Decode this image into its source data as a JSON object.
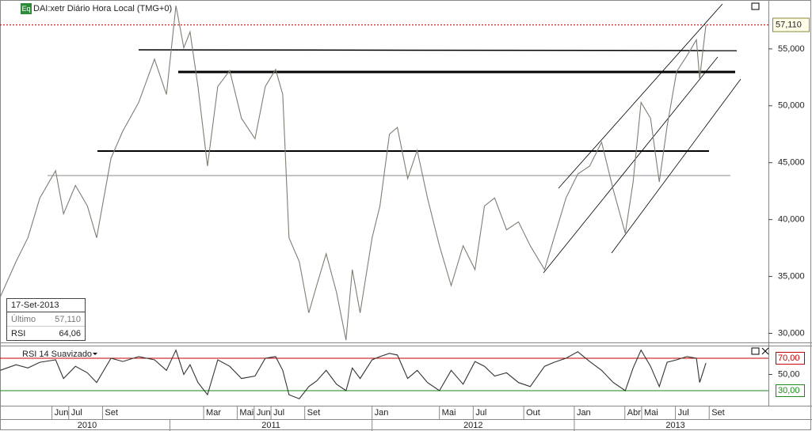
{
  "chart_data": [
    {
      "type": "line",
      "title": "DAI:xetr Diário Hora Local (TMG+0)",
      "badge": "Eq",
      "color": "#7b8073",
      "x": [
        2010.161,
        2010.239,
        2010.298,
        2010.357,
        2010.435,
        2010.474,
        2010.533,
        2010.592,
        2010.638,
        2010.709,
        2010.768,
        2010.846,
        2010.924,
        2010.983,
        2011.03,
        2011.069,
        2011.1,
        2011.139,
        2011.186,
        2011.237,
        2011.296,
        2011.354,
        2011.421,
        2011.472,
        2011.523,
        2011.558,
        2011.589,
        2011.64,
        2011.687,
        2011.726,
        2011.773,
        2011.824,
        2011.871,
        2011.902,
        2011.941,
        2012.0,
        2012.039,
        2012.086,
        2012.125,
        2012.176,
        2012.223,
        2012.274,
        2012.333,
        2012.391,
        2012.45,
        2012.509,
        2012.556,
        2012.606,
        2012.665,
        2012.724,
        2012.782,
        2012.853,
        2012.9,
        2012.959,
        2013.017,
        2013.076,
        2013.135,
        2013.193,
        2013.252,
        2013.291,
        2013.33,
        2013.377,
        2013.42,
        2013.459,
        2013.506,
        2013.557,
        2013.604,
        2013.62,
        2013.651
      ],
      "values": [
        33.2,
        36.3,
        38.4,
        41.9,
        44.3,
        40.5,
        43.0,
        41.2,
        38.4,
        45.4,
        47.8,
        50.3,
        54.1,
        51.0,
        58.8,
        55.1,
        56.5,
        51.7,
        44.7,
        51.7,
        53.1,
        48.9,
        47.1,
        51.7,
        53.2,
        51.0,
        38.4,
        36.3,
        31.8,
        34.2,
        37.0,
        33.6,
        29.4,
        35.6,
        31.8,
        38.4,
        41.2,
        47.5,
        48.1,
        43.6,
        46.1,
        41.9,
        37.7,
        34.2,
        37.7,
        35.6,
        41.2,
        41.9,
        39.1,
        39.8,
        37.7,
        35.6,
        38.4,
        41.9,
        44.0,
        44.7,
        46.8,
        42.6,
        38.8,
        43.3,
        50.3,
        48.9,
        43.3,
        48.2,
        53.0,
        54.4,
        55.8,
        52.4,
        57.11
      ],
      "xlim": [
        2010.16,
        2013.96
      ],
      "ylim": [
        29.2,
        59.3
      ],
      "yticks": [
        {
          "value": 30,
          "label": "30,000"
        },
        {
          "value": 35,
          "label": "35,000"
        },
        {
          "value": 40,
          "label": "40,000"
        },
        {
          "value": 45,
          "label": "45,000"
        },
        {
          "value": 50,
          "label": "50,000"
        },
        {
          "value": 55,
          "label": "55,000"
        }
      ],
      "last_price": {
        "value": 57.11,
        "label": "57,110",
        "color": "#c00000"
      },
      "info_box": {
        "date": "17-Set-2013",
        "rows": [
          [
            "Último",
            "57,110"
          ],
          [
            "RSI",
            "64,06"
          ]
        ]
      },
      "xticks": [
        {
          "value": 2010.417,
          "label": "Jun"
        },
        {
          "value": 2010.5,
          "label": "Jul"
        },
        {
          "value": 2010.667,
          "label": "Set"
        },
        {
          "value": 2011.167,
          "label": "Mar"
        },
        {
          "value": 2011.333,
          "label": "Mai"
        },
        {
          "value": 2011.417,
          "label": "Jun"
        },
        {
          "value": 2011.5,
          "label": "Jul"
        },
        {
          "value": 2011.667,
          "label": "Set"
        },
        {
          "value": 2012.0,
          "label": "Jan"
        },
        {
          "value": 2012.333,
          "label": "Mai"
        },
        {
          "value": 2012.5,
          "label": "Jul"
        },
        {
          "value": 2012.75,
          "label": "Out"
        },
        {
          "value": 2013.0,
          "label": "Jan"
        },
        {
          "value": 2013.25,
          "label": "Abr"
        },
        {
          "value": 2013.333,
          "label": "Mai"
        },
        {
          "value": 2013.5,
          "label": "Jul"
        },
        {
          "value": 2013.667,
          "label": "Set"
        }
      ],
      "years": [
        2010,
        2011,
        2012,
        2013
      ]
    },
    {
      "type": "line",
      "title": "RSI 14 Suavizado",
      "color": "#333333",
      "x": [
        2010.161,
        2010.239,
        2010.298,
        2010.357,
        2010.435,
        2010.474,
        2010.533,
        2010.592,
        2010.638,
        2010.709,
        2010.768,
        2010.846,
        2010.924,
        2010.983,
        2011.03,
        2011.069,
        2011.1,
        2011.139,
        2011.186,
        2011.237,
        2011.296,
        2011.354,
        2011.421,
        2011.472,
        2011.523,
        2011.558,
        2011.589,
        2011.64,
        2011.687,
        2011.726,
        2011.773,
        2011.824,
        2011.871,
        2011.902,
        2011.941,
        2012.0,
        2012.039,
        2012.086,
        2012.125,
        2012.176,
        2012.223,
        2012.274,
        2012.333,
        2012.391,
        2012.45,
        2012.509,
        2012.556,
        2012.606,
        2012.665,
        2012.724,
        2012.782,
        2012.853,
        2012.9,
        2012.959,
        2013.017,
        2013.076,
        2013.135,
        2013.193,
        2013.252,
        2013.291,
        2013.33,
        2013.377,
        2013.42,
        2013.459,
        2013.506,
        2013.557,
        2013.604,
        2013.62,
        2013.651
      ],
      "values": [
        55,
        62,
        58,
        65,
        68,
        45,
        60,
        52,
        40,
        70,
        66,
        72,
        68,
        55,
        80,
        50,
        62,
        40,
        25,
        68,
        60,
        45,
        48,
        70,
        72,
        55,
        25,
        20,
        35,
        42,
        55,
        38,
        30,
        58,
        45,
        68,
        72,
        76,
        74,
        45,
        55,
        40,
        30,
        55,
        38,
        66,
        60,
        48,
        52,
        40,
        35,
        60,
        65,
        70,
        78,
        66,
        55,
        40,
        30,
        58,
        80,
        60,
        35,
        65,
        68,
        72,
        70,
        40,
        64.06
      ],
      "xlim": [
        2010.16,
        2013.96
      ],
      "ylim": [
        12.4,
        84.6
      ],
      "yticks": [
        {
          "value": 30,
          "label": "30,00",
          "color": "#1a8a1a"
        },
        {
          "value": 50,
          "label": "50,00"
        },
        {
          "value": 70,
          "label": "70,00",
          "color": "#c00000"
        }
      ]
    }
  ]
}
